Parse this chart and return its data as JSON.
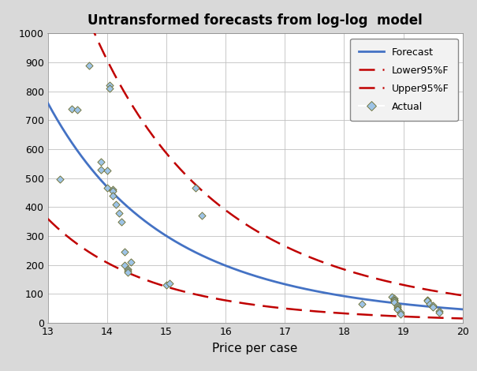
{
  "title": "Untransformed forecasts from log-log  model",
  "xlabel": "Price per case",
  "xlim": [
    13,
    20
  ],
  "ylim": [
    0,
    1000
  ],
  "xticks": [
    13,
    14,
    15,
    16,
    17,
    18,
    19,
    20
  ],
  "yticks": [
    0,
    100,
    200,
    300,
    400,
    500,
    600,
    700,
    800,
    900,
    1000
  ],
  "background_color": "#d9d9d9",
  "plot_bg_color": "#ffffff",
  "forecast_color": "#4472c4",
  "ci_color": "#c00000",
  "scatter_facecolor": "#9dc3e6",
  "scatter_edgecolor": "#6b6b2a",
  "actual_points": [
    [
      13.2,
      495
    ],
    [
      13.4,
      740
    ],
    [
      13.5,
      735
    ],
    [
      13.7,
      890
    ],
    [
      13.9,
      530
    ],
    [
      13.9,
      555
    ],
    [
      14.0,
      525
    ],
    [
      14.0,
      467
    ],
    [
      14.05,
      820
    ],
    [
      14.05,
      810
    ],
    [
      14.1,
      460
    ],
    [
      14.1,
      455
    ],
    [
      14.1,
      440
    ],
    [
      14.15,
      410
    ],
    [
      14.2,
      380
    ],
    [
      14.25,
      350
    ],
    [
      14.3,
      245
    ],
    [
      14.3,
      200
    ],
    [
      14.35,
      185
    ],
    [
      14.35,
      180
    ],
    [
      14.35,
      175
    ],
    [
      14.4,
      210
    ],
    [
      15.0,
      130
    ],
    [
      15.05,
      135
    ],
    [
      15.5,
      465
    ],
    [
      15.6,
      370
    ],
    [
      18.3,
      65
    ],
    [
      18.8,
      90
    ],
    [
      18.85,
      85
    ],
    [
      18.85,
      80
    ],
    [
      18.85,
      75
    ],
    [
      18.85,
      70
    ],
    [
      18.9,
      60
    ],
    [
      18.9,
      55
    ],
    [
      18.9,
      50
    ],
    [
      18.9,
      45
    ],
    [
      18.95,
      35
    ],
    [
      18.95,
      30
    ],
    [
      19.4,
      80
    ],
    [
      19.4,
      75
    ],
    [
      19.45,
      65
    ],
    [
      19.5,
      60
    ],
    [
      19.5,
      55
    ],
    [
      19.6,
      40
    ],
    [
      19.6,
      35
    ]
  ],
  "fore_log_a": 25.947,
  "fore_b": -7.8,
  "low_log_a": 24.0,
  "low_b": -7.8,
  "up_log_a": 27.9,
  "up_b": -7.8
}
